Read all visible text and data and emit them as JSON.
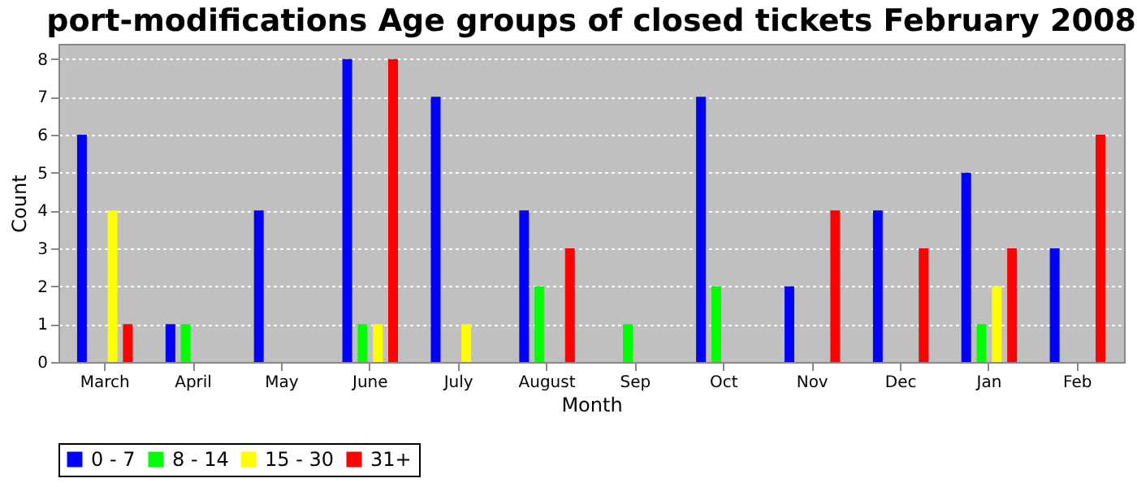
{
  "chart_data": {
    "type": "bar",
    "title": "port-modifications Age groups of closed tickets February 2008",
    "xlabel": "Month",
    "ylabel": "Count",
    "categories": [
      "March",
      "April",
      "May",
      "June",
      "July",
      "August",
      "Sep",
      "Oct",
      "Nov",
      "Dec",
      "Jan",
      "Feb"
    ],
    "series": [
      {
        "name": "0 - 7",
        "color": "#0000ff",
        "values": [
          6,
          1,
          4,
          8,
          7,
          4,
          0,
          7,
          2,
          4,
          5,
          3
        ]
      },
      {
        "name": "8 - 14",
        "color": "#00ff00",
        "values": [
          0,
          1,
          0,
          1,
          0,
          2,
          1,
          2,
          0,
          0,
          1,
          0
        ]
      },
      {
        "name": "15 - 30",
        "color": "#ffff00",
        "values": [
          4,
          0,
          0,
          1,
          1,
          0,
          0,
          0,
          0,
          0,
          2,
          0
        ]
      },
      {
        "name": "31+",
        "color": "#ff0000",
        "values": [
          1,
          0,
          0,
          8,
          0,
          3,
          0,
          0,
          4,
          3,
          3,
          6
        ]
      }
    ],
    "ylim": [
      0,
      8.4
    ],
    "yticks": [
      0,
      1,
      2,
      3,
      4,
      5,
      6,
      7,
      8
    ],
    "grid": "y",
    "legend": "bottom"
  }
}
